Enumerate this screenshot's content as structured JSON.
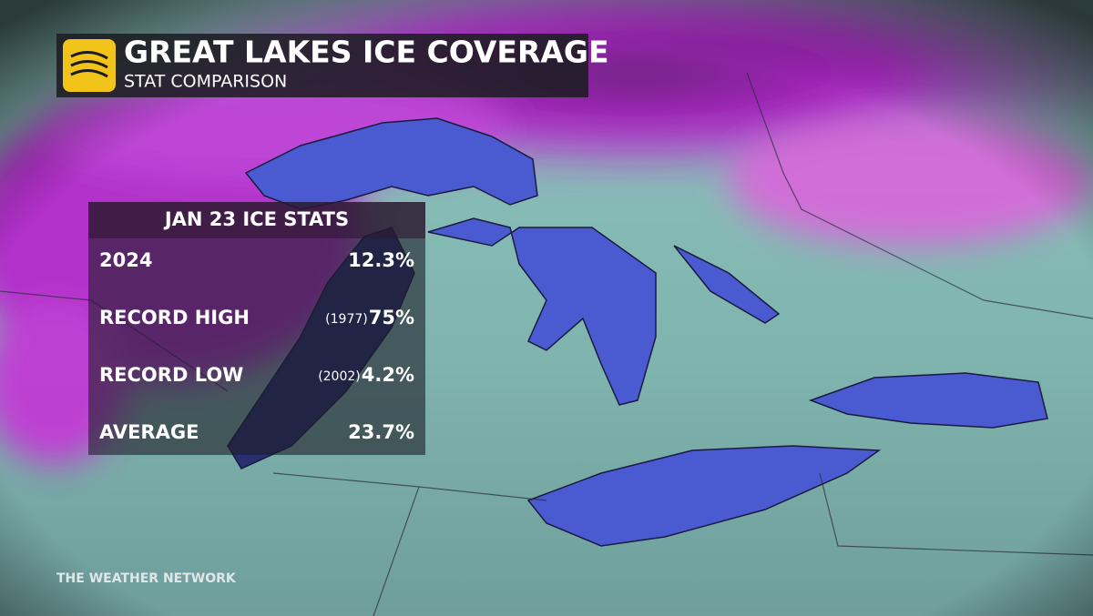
{
  "header": {
    "title": "GREAT LAKES ICE COVERAGE",
    "subtitle": "STAT COMPARISON"
  },
  "table": {
    "title": "JAN 23 ICE STATS",
    "rows": [
      {
        "label": "2024",
        "value": "12.3%"
      },
      {
        "label": "RECORD HIGH",
        "year": "(1977)",
        "value": "75%"
      },
      {
        "label": "RECORD LOW",
        "year": "(2002)",
        "value": "4.2%"
      },
      {
        "label": "AVERAGE",
        "value": "23.7%"
      }
    ]
  },
  "footer": "THE WEATHER NETWORK"
}
